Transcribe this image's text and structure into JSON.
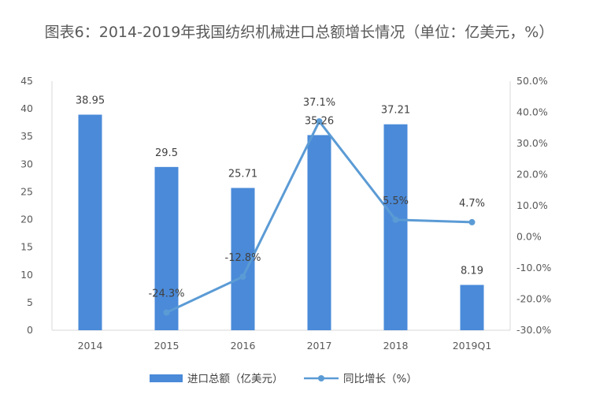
{
  "chart_data": {
    "type": "bar",
    "title": "图表6：2014-2019年我国纺织机械进口总额增长情况（单位：亿美元，%）",
    "categories": [
      "2014",
      "2015",
      "2016",
      "2017",
      "2018",
      "2019Q1"
    ],
    "series": [
      {
        "name": "进口总额（亿美元）",
        "type": "bar",
        "axis": "left",
        "values": [
          38.95,
          29.5,
          25.71,
          35.26,
          37.21,
          8.19
        ],
        "value_labels": [
          "38.95",
          "29.5",
          "25.71",
          "35.26",
          "37.21",
          "8.19"
        ]
      },
      {
        "name": "同比增长（%）",
        "type": "line",
        "axis": "right",
        "values": [
          null,
          -24.3,
          -12.8,
          37.1,
          5.5,
          4.7
        ],
        "value_labels": [
          "",
          "-24.3%",
          "-12.8%",
          "37.1%",
          "5.5%",
          "4.7%"
        ]
      }
    ],
    "y_left": {
      "ylim": [
        0,
        45
      ],
      "ticks": [
        "0",
        "5",
        "10",
        "15",
        "20",
        "25",
        "30",
        "35",
        "40",
        "45"
      ]
    },
    "y_right": {
      "ylim": [
        -30,
        50
      ],
      "ticks": [
        "-30.0%",
        "-20.0%",
        "-10.0%",
        "0.0%",
        "10.0%",
        "20.0%",
        "30.0%",
        "40.0%",
        "50.0%"
      ]
    },
    "grid": false,
    "legend_position": "bottom",
    "colors": {
      "bar": "#4a8ad9",
      "line": "#5b9bd5",
      "axis": "#d9d9d9",
      "text": "#595959"
    }
  }
}
